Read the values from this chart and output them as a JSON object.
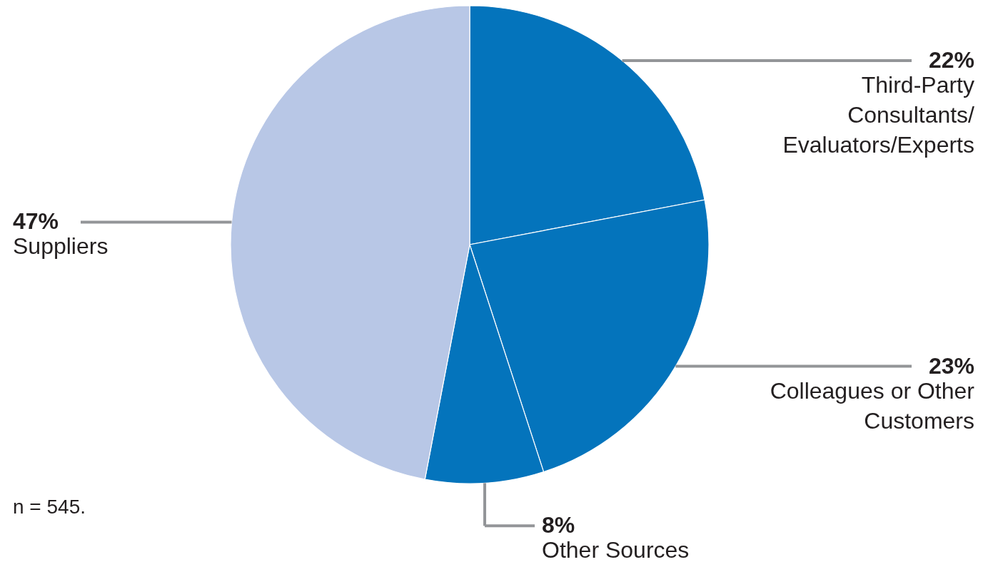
{
  "chart_data": {
    "type": "pie",
    "categories": [
      "Third-Party Consultants/ Evaluators/Experts",
      "Colleagues or Other Customers",
      "Other Sources",
      "Suppliers"
    ],
    "values": [
      22,
      23,
      8,
      47
    ],
    "colors": [
      "#0474bc",
      "#0474bc",
      "#0474bc",
      "#b8c7e6"
    ],
    "value_labels": [
      "22%",
      "23%",
      "8%",
      "47%"
    ],
    "annotations": [
      "n = 545."
    ]
  }
}
